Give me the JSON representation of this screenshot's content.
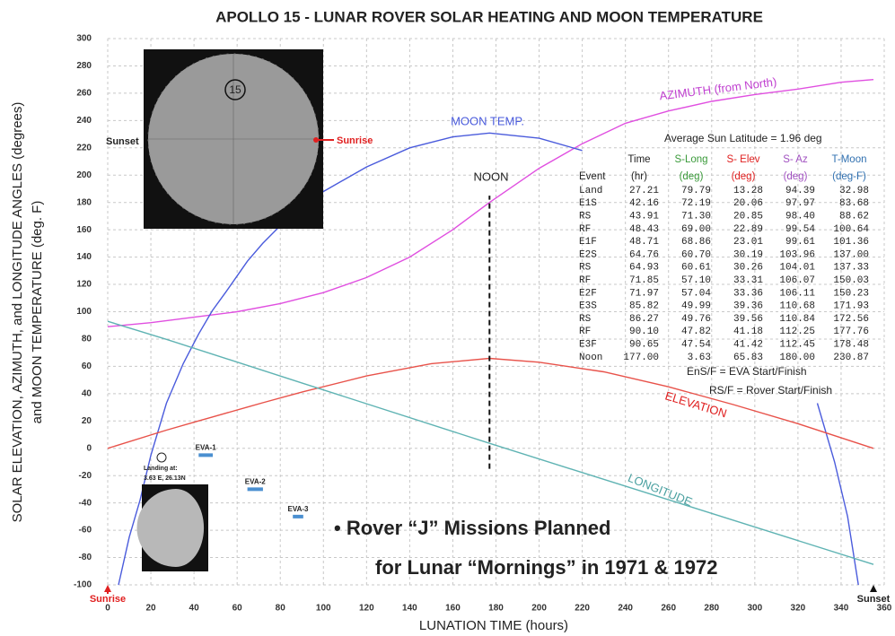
{
  "chart_data": {
    "type": "line",
    "title": "APOLLO 15 - LUNAR ROVER SOLAR HEATING AND MOON TEMPERATURE",
    "x_label": "LUNATION TIME (hours)",
    "y_label": [
      "SOLAR ELEVATION, AZIMUTH, and LONGITUDE ANGLES (degrees)",
      "and MOON TEMPERATURE (deg. F)"
    ],
    "xlim": [
      0,
      360
    ],
    "ylim": [
      -100,
      300
    ],
    "xticks": [
      0,
      20,
      40,
      60,
      80,
      100,
      120,
      140,
      160,
      180,
      200,
      220,
      240,
      260,
      280,
      300,
      320,
      340,
      360
    ],
    "yticks": [
      -100,
      -80,
      -60,
      -40,
      -20,
      0,
      20,
      40,
      60,
      80,
      100,
      120,
      140,
      160,
      180,
      200,
      220,
      240,
      260,
      280,
      300
    ],
    "grid": true,
    "series": [
      {
        "name": "AZIMUTH (from North)",
        "color": "#e04fe0",
        "x": [
          0,
          20,
          40,
          60,
          80,
          100,
          120,
          140,
          160,
          177,
          200,
          220,
          240,
          260,
          280,
          300,
          320,
          340,
          355
        ],
        "values": [
          89,
          92,
          96,
          100,
          106,
          114,
          125,
          140,
          160,
          180,
          205,
          223,
          238,
          247,
          254,
          259,
          263,
          268,
          270
        ]
      },
      {
        "name": "MOON TEMP.",
        "color": "#4a5bdc",
        "x": [
          5,
          10,
          15,
          20,
          27.21,
          35,
          42.16,
          48.43,
          55,
          64.76,
          71.85,
          80,
          85.82,
          90.65,
          100,
          120,
          140,
          160,
          177,
          200,
          220,
          275,
          329,
          337,
          343,
          348
        ],
        "values": [
          -100,
          -65,
          -38,
          -5,
          32.98,
          62,
          83.68,
          100.64,
          115,
          137,
          150,
          163,
          172,
          178.48,
          188,
          206,
          220,
          228,
          230.87,
          227,
          218,
          null,
          33,
          -10,
          -50,
          -100
        ]
      },
      {
        "name": "ELEVATION",
        "color": "#e8524a",
        "x": [
          0,
          27.21,
          42.16,
          48.43,
          64.76,
          71.85,
          85.82,
          90.65,
          120,
          150,
          177,
          200,
          230,
          260,
          290,
          320,
          355
        ],
        "values": [
          0,
          13.28,
          20.06,
          22.89,
          30.19,
          33.31,
          39.36,
          41.42,
          53,
          62,
          65.83,
          63,
          56,
          45,
          32,
          18,
          0
        ]
      },
      {
        "name": "LONGITUDE",
        "color": "#5fb3b3",
        "x": [
          0,
          27.21,
          90.65,
          177,
          355
        ],
        "values": [
          93,
          79.79,
          47.54,
          3.63,
          -85
        ]
      }
    ],
    "noon": {
      "label": "NOON",
      "x": 177,
      "y": [
        -15,
        185
      ]
    },
    "avg_lat": "Average Sun Latitude = 1.96 deg",
    "table": {
      "columns": [
        [
          "Event"
        ],
        [
          "Time",
          "(hr)"
        ],
        [
          "S-Long",
          "(deg)"
        ],
        [
          "S- Elev",
          "(deg)"
        ],
        [
          "S- Az",
          "(deg)"
        ],
        [
          "T-Moon",
          "(deg-F)"
        ]
      ],
      "colors": [
        "#222222",
        "#222222",
        "#3a9a3a",
        "#e02020",
        "#a050c0",
        "#3070b0"
      ],
      "rows": [
        [
          "Land",
          "27.21",
          "79.79",
          "13.28",
          "94.39",
          "32.98"
        ],
        [
          "E1S",
          "42.16",
          "72.19",
          "20.06",
          "97.97",
          "83.68"
        ],
        [
          "RS",
          "43.91",
          "71.30",
          "20.85",
          "98.40",
          "88.62"
        ],
        [
          "RF",
          "48.43",
          "69.00",
          "22.89",
          "99.54",
          "100.64"
        ],
        [
          "E1F",
          "48.71",
          "68.86",
          "23.01",
          "99.61",
          "101.36"
        ],
        [
          "E2S",
          "64.76",
          "60.70",
          "30.19",
          "103.96",
          "137.00"
        ],
        [
          "RS",
          "64.93",
          "60.61",
          "30.26",
          "104.01",
          "137.33"
        ],
        [
          "RF",
          "71.85",
          "57.10",
          "33.31",
          "106.07",
          "150.03"
        ],
        [
          "E2F",
          "71.97",
          "57.04",
          "33.36",
          "106.11",
          "150.23"
        ],
        [
          "E3S",
          "85.82",
          "49.99",
          "39.36",
          "110.68",
          "171.93"
        ],
        [
          "RS",
          "86.27",
          "49.76",
          "39.56",
          "110.84",
          "172.56"
        ],
        [
          "RF",
          "90.10",
          "47.82",
          "41.18",
          "112.25",
          "177.76"
        ],
        [
          "E3F",
          "90.65",
          "47.54",
          "41.42",
          "112.45",
          "178.48"
        ],
        [
          "Noon",
          "177.00",
          "3.63",
          "65.83",
          "180.00",
          "230.87"
        ]
      ],
      "notes": [
        "EnS/F = EVA Start/Finish",
        "RS/F = Rover Start/Finish"
      ]
    },
    "eva": [
      {
        "label": "EVA-1",
        "x": [
          42.16,
          48.71
        ],
        "y": -5
      },
      {
        "label": "EVA-2",
        "x": [
          64.76,
          71.97
        ],
        "y": -30
      },
      {
        "label": "EVA-3",
        "x": [
          85.82,
          90.65
        ],
        "y": -50
      }
    ],
    "bullets": [
      "Rover “J” Missions Planned",
      "for Lunar “Mornings” in 1971 & 1972"
    ],
    "sunrise": "Sunrise",
    "sunset": "Sunset",
    "inset": {
      "site": "15",
      "left": "Sunset",
      "right": "Sunrise",
      "landing": [
        "Landing at:",
        "3.63 E, 26.13N"
      ]
    }
  }
}
